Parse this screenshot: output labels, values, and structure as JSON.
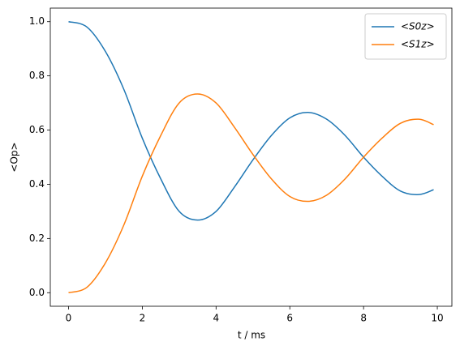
{
  "chart_data": {
    "type": "line",
    "xlabel": "t / ms",
    "ylabel": "<Op>",
    "x": [
      0,
      0.5,
      1,
      1.5,
      2,
      2.5,
      3,
      3.5,
      4,
      4.5,
      5,
      5.5,
      6,
      6.5,
      7,
      7.5,
      8,
      8.5,
      9,
      9.5,
      9.9
    ],
    "series": [
      {
        "name": "<S0z>",
        "color": "#1f77b4",
        "values": [
          1.0,
          0.98,
          0.89,
          0.75,
          0.57,
          0.42,
          0.3,
          0.268,
          0.3,
          0.39,
          0.49,
          0.58,
          0.645,
          0.665,
          0.64,
          0.58,
          0.5,
          0.43,
          0.375,
          0.362,
          0.38
        ]
      },
      {
        "name": "<S1z>",
        "color": "#ff7f0e",
        "values": [
          0.0,
          0.02,
          0.11,
          0.25,
          0.43,
          0.58,
          0.7,
          0.733,
          0.7,
          0.61,
          0.51,
          0.42,
          0.355,
          0.337,
          0.36,
          0.42,
          0.5,
          0.57,
          0.625,
          0.64,
          0.62
        ]
      }
    ],
    "xlim": [
      -0.495,
      10.395
    ],
    "xticks": [
      0,
      2,
      4,
      6,
      8,
      10
    ],
    "ylim": [
      -0.05,
      1.05
    ],
    "yticks": [
      {
        "value": 0,
        "label": "0.0"
      },
      0.2,
      0.4,
      0.6,
      0.8,
      {
        "value": 1,
        "label": "1.0"
      }
    ],
    "grid": false,
    "legend": "upper right"
  }
}
